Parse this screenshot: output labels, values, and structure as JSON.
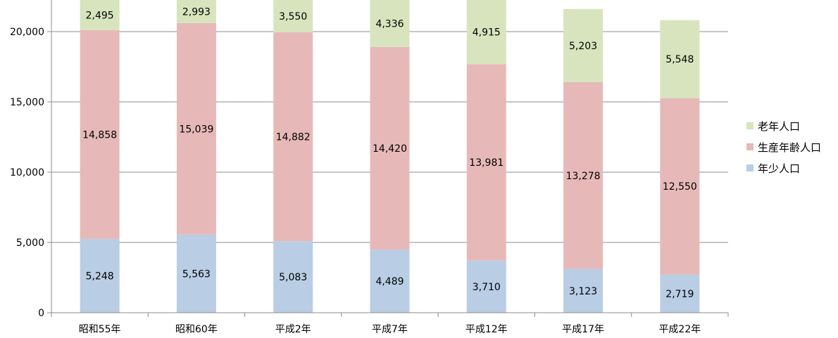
{
  "chart_data": {
    "type": "bar",
    "stacked": true,
    "categories": [
      "昭和55年",
      "昭和60年",
      "平成2年",
      "平成7年",
      "平成12年",
      "平成17年",
      "平成22年"
    ],
    "series": [
      {
        "name": "年少人口",
        "color": "#b9cde5",
        "values": [
          5248,
          5563,
          5083,
          4489,
          3710,
          3123,
          2719
        ]
      },
      {
        "name": "生産年齢人口",
        "color": "#e6b9b8",
        "values": [
          14858,
          15039,
          14882,
          14420,
          13981,
          13278,
          12550
        ]
      },
      {
        "name": "老年人口",
        "color": "#d7e4bd",
        "values": [
          2495,
          2993,
          3550,
          4336,
          4915,
          5203,
          5548
        ]
      }
    ],
    "value_labels": [
      [
        "5,248",
        "5,563",
        "5,083",
        "4,489",
        "3,710",
        "3,123",
        "2,719"
      ],
      [
        "14,858",
        "15,039",
        "14,882",
        "14,420",
        "13,981",
        "13,278",
        "12,550"
      ],
      [
        "2,495",
        "2,993",
        "3,550",
        "4,336",
        "4,915",
        "5,203",
        "5,548"
      ]
    ],
    "yticks": [
      0,
      5000,
      10000,
      15000,
      20000
    ],
    "ytick_labels": [
      "0",
      "5,000",
      "10,000",
      "15,000",
      "20,000"
    ],
    "ylim": [
      0,
      22500
    ],
    "grid": true,
    "legend_position": "right",
    "legend_order": [
      2,
      1,
      0
    ],
    "title": "",
    "xlabel": "",
    "ylabel": ""
  }
}
